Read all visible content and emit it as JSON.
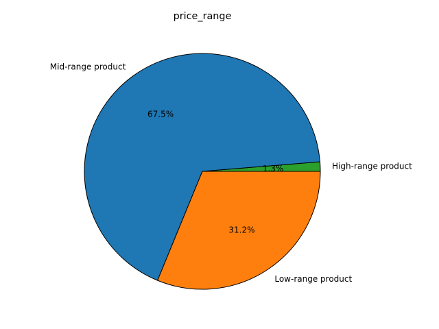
{
  "chart_data": {
    "type": "pie",
    "title": "price_range",
    "start_angle_deg": 0,
    "direction": "counterclockwise",
    "slices": [
      {
        "label": "High-range product",
        "value": 1.3,
        "pct_label": "1.3%",
        "color": "#2ca02c"
      },
      {
        "label": "Mid-range product",
        "value": 67.5,
        "pct_label": "67.5%",
        "color": "#1f77b4"
      },
      {
        "label": "Low-range product",
        "value": 31.2,
        "pct_label": "31.2%",
        "color": "#ff7f0e"
      }
    ],
    "edge_color": "#000000"
  }
}
